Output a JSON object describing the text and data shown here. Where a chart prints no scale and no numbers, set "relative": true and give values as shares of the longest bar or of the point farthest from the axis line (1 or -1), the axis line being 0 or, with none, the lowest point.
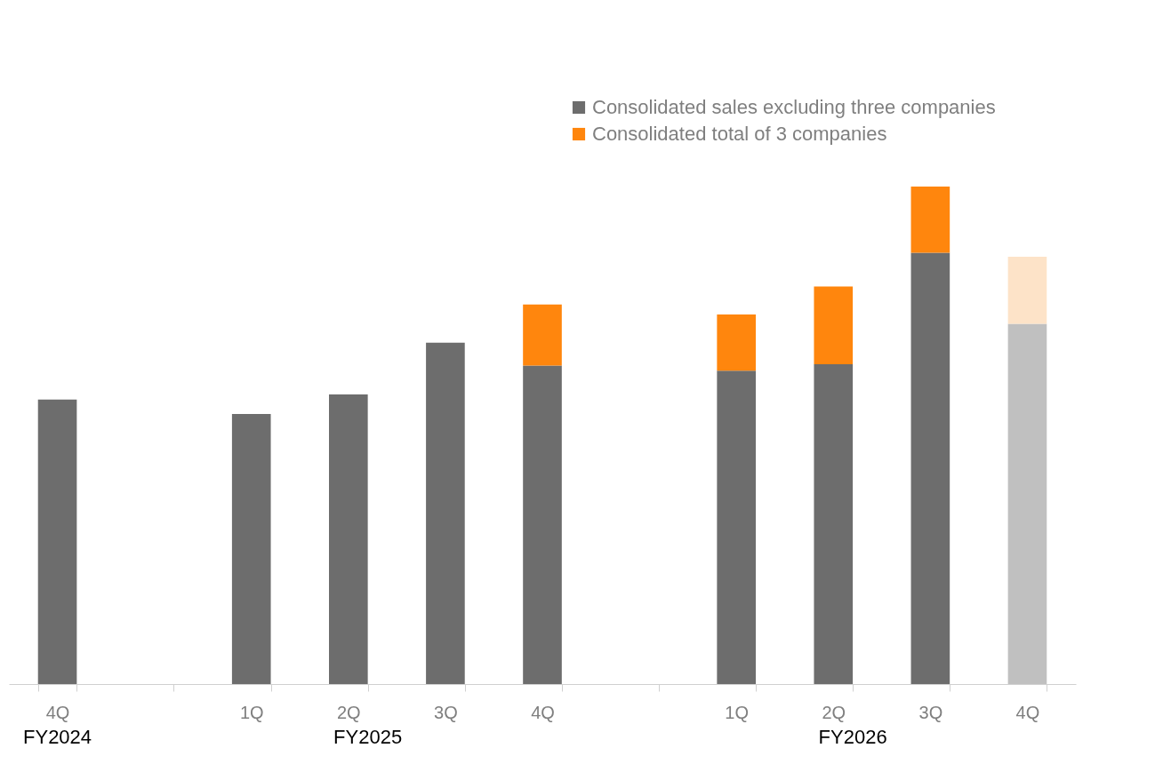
{
  "chart_data": {
    "type": "bar",
    "stacked": true,
    "relative": true,
    "legend": "top right",
    "categories": [
      "4Q",
      null,
      "1Q",
      "2Q",
      "3Q",
      "4Q",
      null,
      "1Q",
      "2Q",
      "3Q",
      "4Q"
    ],
    "series": [
      {
        "name": "Consolidated sales excluding three companies",
        "color": "#6d6d6d",
        "colors": [
          "#6d6d6d",
          "#6d6d6d",
          "#6d6d6d",
          "#6d6d6d",
          "#6d6d6d",
          "#6d6d6d",
          "#6d6d6d",
          "#6d6d6d",
          "#6d6d6d",
          "#6d6d6d",
          "#c0c0c0"
        ],
        "values": [
          0.572,
          null,
          0.543,
          0.582,
          0.686,
          0.64,
          null,
          0.63,
          0.643,
          0.867,
          0.724
        ]
      },
      {
        "name": "Consolidated total of 3 companies",
        "color": "#ff860d",
        "colors": [
          "#ff860d",
          "#ff860d",
          "#ff860d",
          "#ff860d",
          "#ff860d",
          "#ff860d",
          "#ff860d",
          "#ff860d",
          "#ff860d",
          "#ff860d",
          "#fde3c8"
        ],
        "values": [
          null,
          null,
          null,
          null,
          null,
          0.123,
          null,
          0.113,
          0.156,
          0.133,
          0.135
        ]
      }
    ],
    "annotations": [
      "FY2024",
      "FY2025",
      "FY2026"
    ]
  }
}
